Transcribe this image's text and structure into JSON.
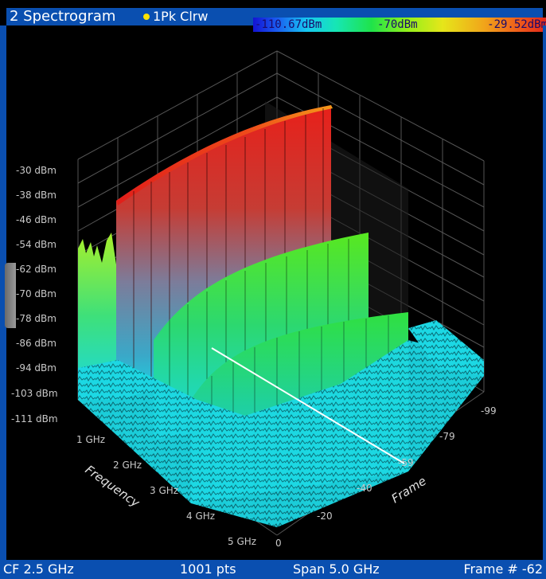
{
  "window": {
    "title": "2 Spectrogram",
    "trace_label": "1Pk Clrw",
    "trace_color": "#ffe300"
  },
  "color_scale": {
    "min_label": "-110.67dBm",
    "mid_label": "-70dBm",
    "max_label": "-29.52dBm"
  },
  "axes": {
    "level_ticks": [
      "-30 dBm",
      "-38 dBm",
      "-46 dBm",
      "-54 dBm",
      "-62 dBm",
      "-70 dBm",
      "-78 dBm",
      "-86 dBm",
      "-94 dBm",
      "-103 dBm",
      "-111 dBm"
    ],
    "frequency_title": "Frequency",
    "frequency_ticks": [
      "1 GHz",
      "2 GHz",
      "3 GHz",
      "4 GHz",
      "5 GHz"
    ],
    "frame_title": "Frame",
    "frame_ticks": [
      "0",
      "-20",
      "-40",
      "-59",
      "-79",
      "-99"
    ]
  },
  "footer": {
    "center_freq": "CF 2.5 GHz",
    "points": "1001 pts",
    "span": "Span 5.0 GHz",
    "frame": "Frame # -62"
  }
}
